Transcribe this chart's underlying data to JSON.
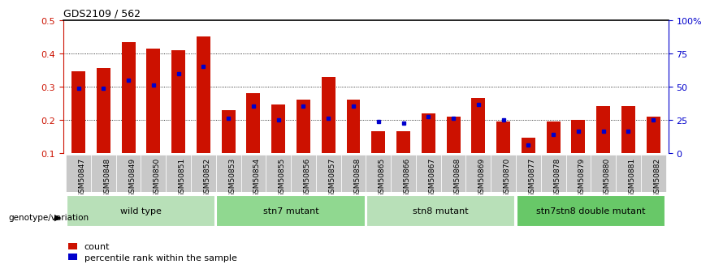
{
  "title": "GDS2109 / 562",
  "samples": [
    "GSM50847",
    "GSM50848",
    "GSM50849",
    "GSM50850",
    "GSM50851",
    "GSM50852",
    "GSM50853",
    "GSM50854",
    "GSM50855",
    "GSM50856",
    "GSM50857",
    "GSM50858",
    "GSM50865",
    "GSM50866",
    "GSM50867",
    "GSM50868",
    "GSM50869",
    "GSM50870",
    "GSM50877",
    "GSM50878",
    "GSM50879",
    "GSM50880",
    "GSM50881",
    "GSM50882"
  ],
  "count_values": [
    0.345,
    0.355,
    0.435,
    0.415,
    0.41,
    0.45,
    0.23,
    0.28,
    0.245,
    0.26,
    0.33,
    0.26,
    0.165,
    0.165,
    0.22,
    0.21,
    0.265,
    0.195,
    0.145,
    0.195,
    0.2,
    0.24,
    0.24,
    0.21
  ],
  "percentile_values": [
    0.295,
    0.295,
    0.32,
    0.305,
    0.34,
    0.36,
    0.205,
    0.24,
    0.2,
    0.24,
    0.205,
    0.24,
    0.195,
    0.19,
    0.21,
    0.205,
    0.245,
    0.2,
    0.125,
    0.155,
    0.165,
    0.165,
    0.165,
    0.2
  ],
  "groups": [
    {
      "label": "wild type",
      "start": 0,
      "end": 6,
      "color": "#b8e0b8"
    },
    {
      "label": "stn7 mutant",
      "start": 6,
      "end": 12,
      "color": "#90d890"
    },
    {
      "label": "stn8 mutant",
      "start": 12,
      "end": 18,
      "color": "#b8e0b8"
    },
    {
      "label": "stn7stn8 double mutant",
      "start": 18,
      "end": 24,
      "color": "#68c868"
    }
  ],
  "bar_color": "#cc1100",
  "percentile_color": "#0000cc",
  "ylim_left": [
    0.1,
    0.5
  ],
  "yticks_left": [
    0.1,
    0.2,
    0.3,
    0.4,
    0.5
  ],
  "yticks_right": [
    0,
    25,
    50,
    75,
    100
  ],
  "ytick_labels_right": [
    "0",
    "25",
    "50",
    "75",
    "100%"
  ],
  "background_color": "#ffffff",
  "bar_width": 0.55,
  "legend_count": "count",
  "legend_percentile": "percentile rank within the sample",
  "genotype_label": "genotype/variation"
}
